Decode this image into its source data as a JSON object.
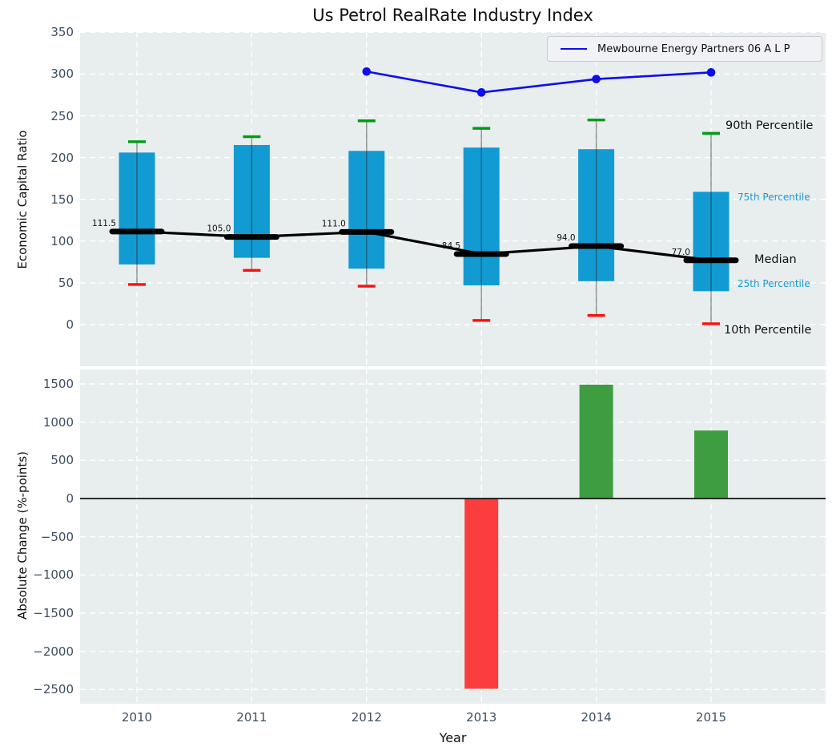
{
  "title": "Us Petrol RealRate Industry Index",
  "legend": {
    "label": "Mewbourne Energy Partners 06 A L P"
  },
  "annotations": {
    "p90": "90th Percentile",
    "p75": "75th Percentile",
    "median": "Median",
    "p25": "25th Percentile",
    "p10": "10th Percentile"
  },
  "colors": {
    "panel_bg": "#e8edee",
    "grid": "#ffffff",
    "box": "#119bd2",
    "whisker": "rgba(40,40,40,0.5)",
    "cap_high": "#029b14",
    "cap_low": "#fb0f0a",
    "median": "#000000",
    "company_line": "#0d0dee",
    "bar_up": "#3e9d41",
    "bar_down": "#fb3d3d",
    "zero_line": "#111111",
    "tick_text": "#3d4f63",
    "pct_label_blue": "#1899d2"
  },
  "chart_data": [
    {
      "type": "box",
      "title": "Us Petrol RealRate Industry Index",
      "ylabel": "Economic Capital Ratio",
      "categories": [
        "2010",
        "2011",
        "2012",
        "2013",
        "2014",
        "2015"
      ],
      "yticks": [
        0,
        50,
        100,
        150,
        200,
        250,
        300,
        350
      ],
      "ylim": [
        -50,
        350
      ],
      "grid": true,
      "legend_position": "upper right",
      "series": [
        {
          "name": "90th Percentile",
          "values": [
            219,
            225,
            244,
            235,
            245,
            229
          ]
        },
        {
          "name": "75th Percentile",
          "values": [
            206,
            215,
            208,
            212,
            210,
            159
          ]
        },
        {
          "name": "Median",
          "values": [
            111.5,
            105.0,
            111.0,
            84.5,
            94.0,
            77.0
          ]
        },
        {
          "name": "25th Percentile",
          "values": [
            72,
            80,
            67,
            47,
            52,
            40
          ]
        },
        {
          "name": "10th Percentile",
          "values": [
            48,
            65,
            46,
            5,
            11,
            1
          ]
        },
        {
          "name": "Mewbourne Energy Partners 06 A L P",
          "values": [
            null,
            null,
            303,
            278,
            294,
            302
          ]
        }
      ],
      "median_labels": [
        "111.5",
        "105.0",
        "111.0",
        "84.5",
        "94.0",
        "77.0"
      ]
    },
    {
      "type": "bar",
      "ylabel": "Absolute Change (%-points)",
      "xlabel": "Year",
      "categories": [
        "2010",
        "2011",
        "2012",
        "2013",
        "2014",
        "2015"
      ],
      "values": [
        null,
        null,
        null,
        -2490,
        1490,
        890
      ],
      "yticks": [
        1500,
        1000,
        500,
        0,
        -500,
        -1000,
        -1500,
        -2000,
        -2500
      ],
      "ylim": [
        -2685,
        1690
      ],
      "grid": true
    }
  ]
}
